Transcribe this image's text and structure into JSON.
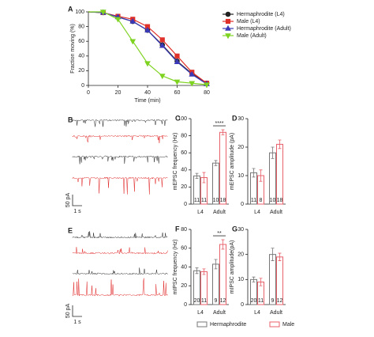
{
  "chart_data": [
    {
      "type": "line",
      "panel_label": "A",
      "x_label": "Time (min)",
      "y_label": "Fraction moving (%)",
      "x": [
        0,
        10,
        20,
        30,
        40,
        50,
        60,
        70,
        80
      ],
      "xlim": [
        0,
        80
      ],
      "xticks": [
        0,
        20,
        40,
        60,
        80
      ],
      "ylim": [
        0,
        100
      ],
      "yticks": [
        0,
        20,
        40,
        60,
        80,
        100
      ],
      "legend_position": "upper right",
      "series": [
        {
          "name": "Hermaphrodite (L4)",
          "color": "#222222",
          "marker": "circle",
          "values": [
            100,
            99,
            93,
            87,
            75,
            55,
            33,
            16,
            3
          ]
        },
        {
          "name": "Male (L4)",
          "color": "#e0302a",
          "marker": "square",
          "values": [
            100,
            99,
            94,
            90,
            80,
            62,
            40,
            18,
            3
          ]
        },
        {
          "name": "Hermaphrodite (Adult)",
          "color": "#3a3ab8",
          "marker": "triangle",
          "values": [
            100,
            99,
            93,
            87,
            75,
            54,
            32,
            15,
            2
          ]
        },
        {
          "name": "Male (Adult)",
          "color": "#7ed321",
          "marker": "triangle-down",
          "values": [
            100,
            100,
            90,
            60,
            30,
            13,
            5,
            3,
            1
          ]
        }
      ]
    },
    {
      "type": "bar",
      "panel_label": "C",
      "y_label": "mEPSC frequency (Hz)",
      "categories": [
        "L4",
        "Adult"
      ],
      "ylim": [
        0,
        100
      ],
      "yticks": [
        0,
        20,
        40,
        60,
        80,
        100
      ],
      "significance": {
        "category": 1,
        "label": "****"
      },
      "series": [
        {
          "name": "Hermaphrodite",
          "color": "#777777",
          "values": [
            33,
            48
          ],
          "errors": [
            3,
            3
          ],
          "n": [
            11,
            10
          ]
        },
        {
          "name": "Male",
          "color": "#e8606a",
          "values": [
            31,
            84
          ],
          "errors": [
            6,
            3
          ],
          "n": [
            11,
            18
          ]
        }
      ]
    },
    {
      "type": "bar",
      "panel_label": "D",
      "y_label": "mEPSC amplitude (pA)",
      "categories": [
        "L4",
        "Adult"
      ],
      "ylim": [
        0,
        30
      ],
      "yticks": [
        0,
        10,
        20,
        30
      ],
      "series": [
        {
          "name": "Hermaphrodite",
          "color": "#777777",
          "values": [
            11,
            18
          ],
          "errors": [
            1.5,
            2
          ],
          "n": [
            11,
            10
          ]
        },
        {
          "name": "Male",
          "color": "#e8606a",
          "values": [
            10,
            21
          ],
          "errors": [
            2,
            1.5
          ],
          "n": [
            8,
            18
          ]
        }
      ]
    },
    {
      "type": "bar",
      "panel_label": "F",
      "y_label": "mIPSC frequency (Hz)",
      "categories": [
        "L4",
        "Adult"
      ],
      "ylim": [
        0,
        80
      ],
      "yticks": [
        0,
        20,
        40,
        60,
        80
      ],
      "significance": {
        "category": 1,
        "label": "**"
      },
      "series": [
        {
          "name": "Hermaphrodite",
          "color": "#777777",
          "values": [
            36,
            43
          ],
          "errors": [
            3,
            5
          ],
          "n": [
            20,
            9
          ]
        },
        {
          "name": "Male",
          "color": "#e8606a",
          "values": [
            35,
            64
          ],
          "errors": [
            3,
            5
          ],
          "n": [
            11,
            12
          ]
        }
      ]
    },
    {
      "type": "bar",
      "panel_label": "G",
      "y_label": "mIPSC amplitude(pA)",
      "categories": [
        "L4",
        "Adult"
      ],
      "ylim": [
        0,
        30
      ],
      "yticks": [
        0,
        10,
        20,
        30
      ],
      "series": [
        {
          "name": "Hermaphrodite",
          "color": "#777777",
          "values": [
            10,
            20
          ],
          "errors": [
            1,
            2.5
          ],
          "n": [
            20,
            9
          ]
        },
        {
          "name": "Male",
          "color": "#e8606a",
          "values": [
            9,
            19
          ],
          "errors": [
            1.5,
            1.5
          ],
          "n": [
            11,
            12
          ]
        }
      ]
    }
  ],
  "trace_panels": [
    {
      "panel_label": "B",
      "scale_y": "50 pA",
      "scale_x": "1 s"
    },
    {
      "panel_label": "E",
      "scale_y": "50 pA",
      "scale_x": "1 s"
    }
  ]
}
